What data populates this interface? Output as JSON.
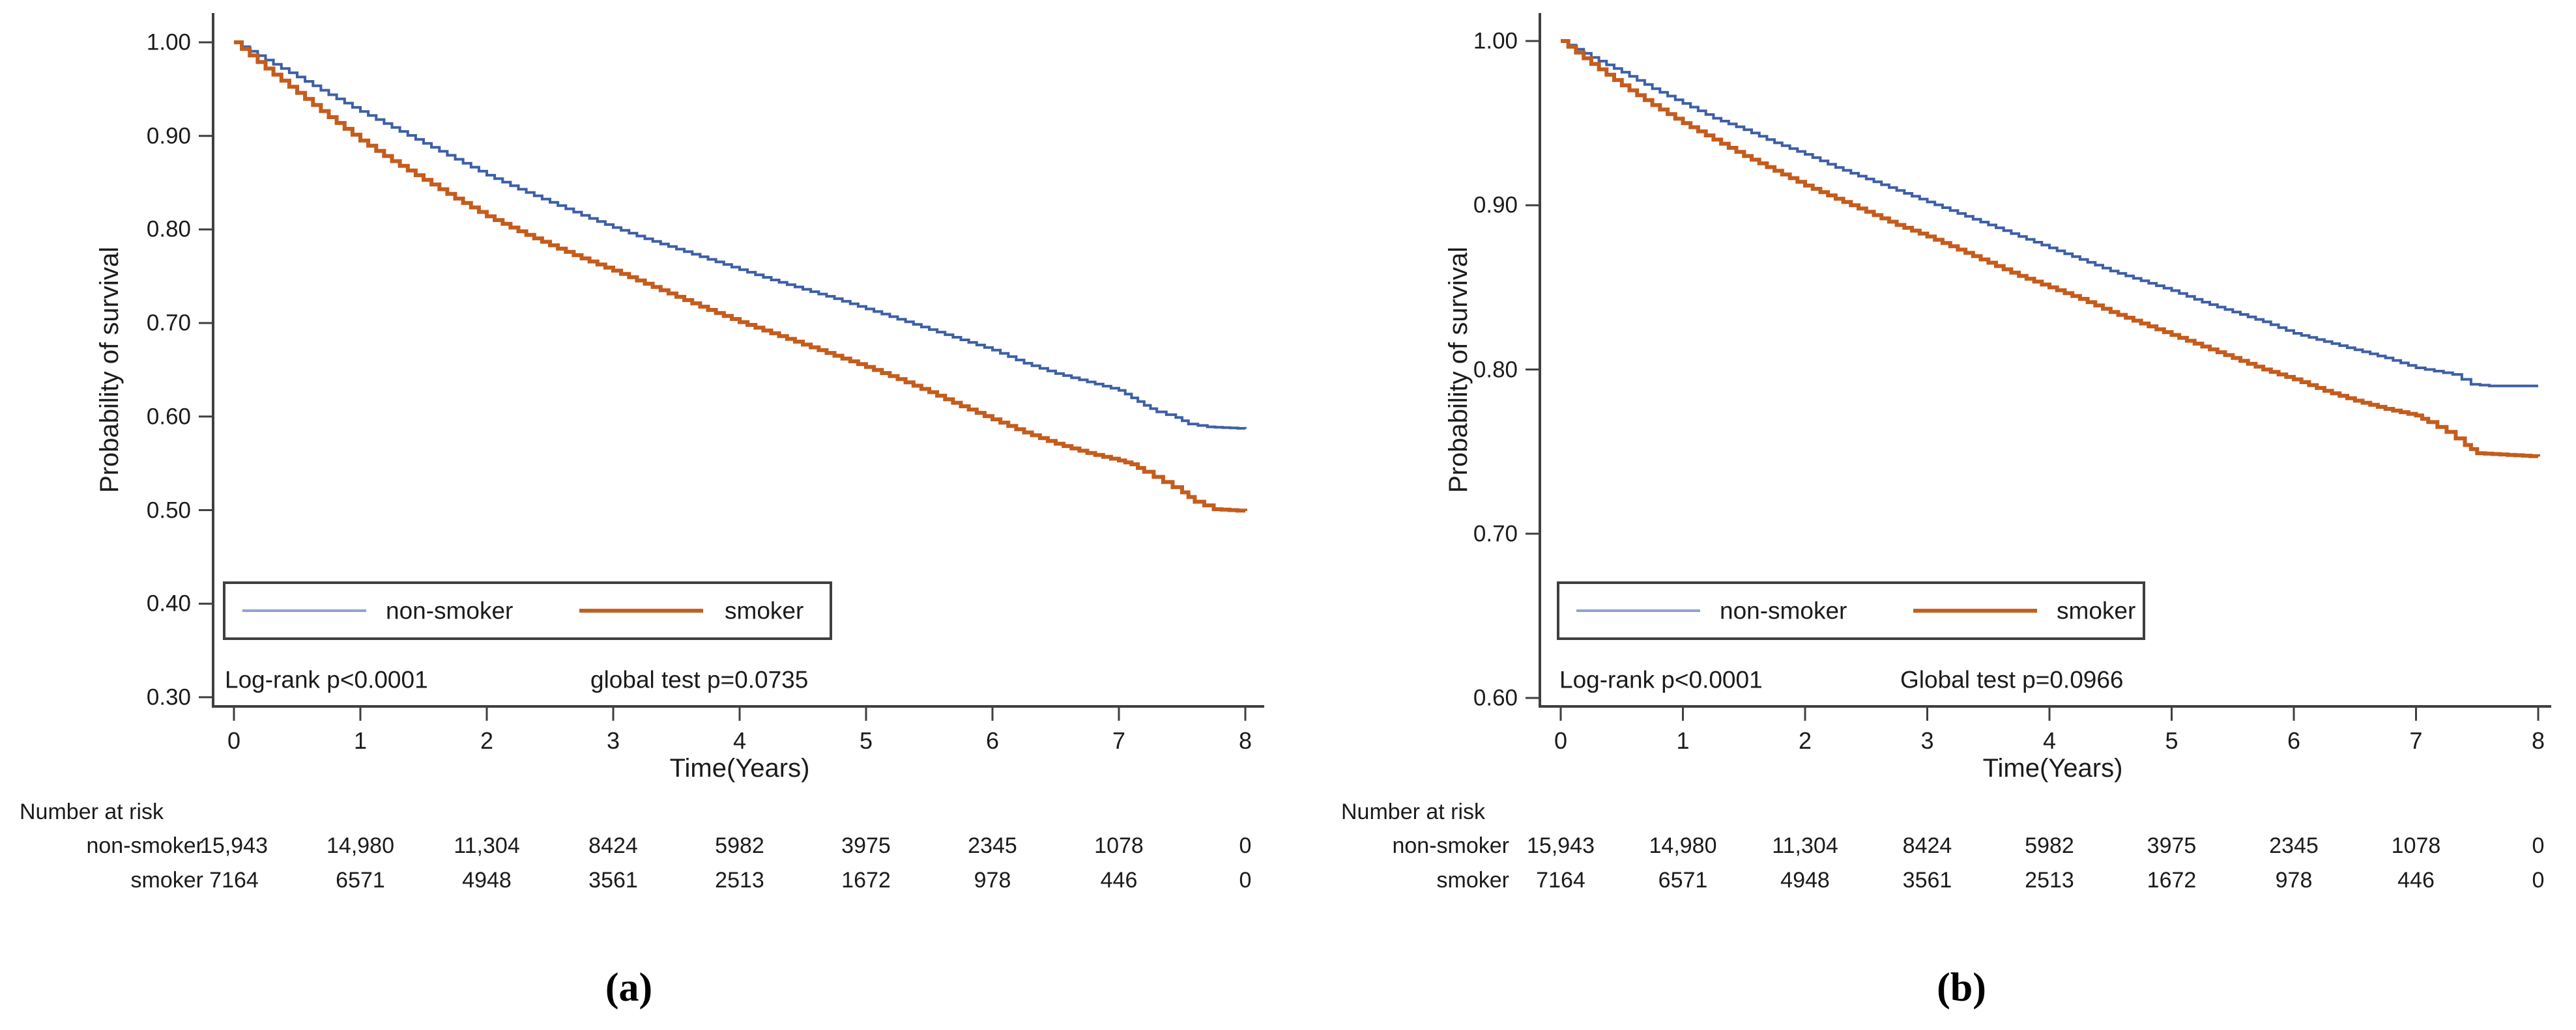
{
  "figure": {
    "background": "#ffffff",
    "axis_color": "#3f3f3f",
    "text_color": "#1b1b1b"
  },
  "chart_data": [
    {
      "type": "line",
      "subtype": "kaplan-meier-step",
      "panel": "a",
      "xlabel": "Time(Years)",
      "ylabel": "Probability of survival",
      "xlim": [
        0,
        8
      ],
      "ylim": [
        0.3,
        1.0
      ],
      "xticks": [
        "0",
        "1",
        "2",
        "3",
        "4",
        "5",
        "6",
        "7",
        "8"
      ],
      "yticks": [
        "1.00",
        "0.90",
        "0.80",
        "0.70",
        "0.60",
        "0.50",
        "0.40",
        "0.30"
      ],
      "grid": "off",
      "legend_position": "inside-bottom-left-box",
      "annotations": [
        "Log-rank p<0.0001",
        "global test p=0.0735"
      ],
      "series": [
        {
          "name": "non-smoker",
          "color": "#3d5fa6",
          "legend_color": "#8ca4ce",
          "points": [
            [
              0,
              1.0
            ],
            [
              0.25,
              0.981
            ],
            [
              0.5,
              0.963
            ],
            [
              0.75,
              0.944
            ],
            [
              1,
              0.926
            ],
            [
              1.25,
              0.909
            ],
            [
              1.5,
              0.892
            ],
            [
              1.75,
              0.875
            ],
            [
              2,
              0.858
            ],
            [
              2.25,
              0.843
            ],
            [
              2.5,
              0.829
            ],
            [
              2.75,
              0.815
            ],
            [
              3,
              0.802
            ],
            [
              3.25,
              0.79
            ],
            [
              3.5,
              0.779
            ],
            [
              3.75,
              0.768
            ],
            [
              4,
              0.757
            ],
            [
              4.25,
              0.746
            ],
            [
              4.5,
              0.736
            ],
            [
              4.75,
              0.726
            ],
            [
              5,
              0.715
            ],
            [
              5.25,
              0.704
            ],
            [
              5.5,
              0.693
            ],
            [
              5.75,
              0.682
            ],
            [
              6,
              0.671
            ],
            [
              6.25,
              0.657
            ],
            [
              6.5,
              0.646
            ],
            [
              6.75,
              0.637
            ],
            [
              7,
              0.628
            ],
            [
              7.1,
              0.62
            ],
            [
              7.2,
              0.612
            ],
            [
              7.3,
              0.605
            ],
            [
              7.45,
              0.599
            ],
            [
              7.55,
              0.592
            ],
            [
              7.7,
              0.589
            ],
            [
              8,
              0.587
            ]
          ]
        },
        {
          "name": "smoker",
          "color": "#c45c1d",
          "legend_color": "#c2601f",
          "points": [
            [
              0,
              1.0
            ],
            [
              0.25,
              0.972
            ],
            [
              0.5,
              0.946
            ],
            [
              0.75,
              0.92
            ],
            [
              1,
              0.895
            ],
            [
              1.25,
              0.873
            ],
            [
              1.5,
              0.853
            ],
            [
              1.75,
              0.833
            ],
            [
              2,
              0.814
            ],
            [
              2.25,
              0.798
            ],
            [
              2.5,
              0.783
            ],
            [
              2.75,
              0.769
            ],
            [
              3,
              0.756
            ],
            [
              3.25,
              0.742
            ],
            [
              3.5,
              0.728
            ],
            [
              3.75,
              0.714
            ],
            [
              4,
              0.701
            ],
            [
              4.25,
              0.689
            ],
            [
              4.5,
              0.677
            ],
            [
              4.75,
              0.665
            ],
            [
              5,
              0.653
            ],
            [
              5.25,
              0.64
            ],
            [
              5.5,
              0.626
            ],
            [
              5.75,
              0.611
            ],
            [
              6,
              0.597
            ],
            [
              6.25,
              0.583
            ],
            [
              6.5,
              0.571
            ],
            [
              6.75,
              0.561
            ],
            [
              7,
              0.553
            ],
            [
              7.1,
              0.549
            ],
            [
              7.2,
              0.541
            ],
            [
              7.35,
              0.53
            ],
            [
              7.5,
              0.519
            ],
            [
              7.6,
              0.509
            ],
            [
              7.75,
              0.501
            ],
            [
              8,
              0.499
            ]
          ]
        }
      ]
    },
    {
      "type": "line",
      "subtype": "kaplan-meier-step",
      "panel": "b",
      "xlabel": "Time(Years)",
      "ylabel": "Probability of survival",
      "xlim": [
        0,
        8
      ],
      "ylim": [
        0.6,
        1.0
      ],
      "xticks": [
        "0",
        "1",
        "2",
        "3",
        "4",
        "5",
        "6",
        "7",
        "8"
      ],
      "yticks": [
        "1.00",
        "0.90",
        "0.80",
        "0.70",
        "0.60"
      ],
      "grid": "off",
      "legend_position": "inside-bottom-left-box",
      "annotations": [
        "Log-rank p<0.0001",
        "Global test p=0.0966"
      ],
      "series": [
        {
          "name": "non-smoker",
          "color": "#3d5fa6",
          "legend_color": "#8ca4ce",
          "points": [
            [
              0,
              1.0
            ],
            [
              0.25,
              0.99
            ],
            [
              0.5,
              0.981
            ],
            [
              0.75,
              0.971
            ],
            [
              1,
              0.962
            ],
            [
              1.25,
              0.953
            ],
            [
              1.5,
              0.946
            ],
            [
              1.75,
              0.938
            ],
            [
              2,
              0.931
            ],
            [
              2.25,
              0.923
            ],
            [
              2.5,
              0.916
            ],
            [
              2.75,
              0.909
            ],
            [
              3,
              0.902
            ],
            [
              3.25,
              0.895
            ],
            [
              3.5,
              0.888
            ],
            [
              3.75,
              0.881
            ],
            [
              4,
              0.874
            ],
            [
              4.25,
              0.867
            ],
            [
              4.5,
              0.86
            ],
            [
              4.75,
              0.854
            ],
            [
              5,
              0.848
            ],
            [
              5.25,
              0.841
            ],
            [
              5.5,
              0.835
            ],
            [
              5.75,
              0.829
            ],
            [
              6,
              0.822
            ],
            [
              6.25,
              0.817
            ],
            [
              6.5,
              0.812
            ],
            [
              6.75,
              0.807
            ],
            [
              7,
              0.801
            ],
            [
              7.15,
              0.799
            ],
            [
              7.3,
              0.797
            ],
            [
              7.45,
              0.791
            ],
            [
              7.6,
              0.79
            ],
            [
              8,
              0.79
            ]
          ]
        },
        {
          "name": "smoker",
          "color": "#c45c1d",
          "legend_color": "#c2601f",
          "points": [
            [
              0,
              1.0
            ],
            [
              0.25,
              0.986
            ],
            [
              0.5,
              0.973
            ],
            [
              0.75,
              0.961
            ],
            [
              1,
              0.95
            ],
            [
              1.25,
              0.94
            ],
            [
              1.5,
              0.93
            ],
            [
              1.75,
              0.921
            ],
            [
              2,
              0.912
            ],
            [
              2.25,
              0.904
            ],
            [
              2.5,
              0.896
            ],
            [
              2.75,
              0.888
            ],
            [
              3,
              0.881
            ],
            [
              3.25,
              0.873
            ],
            [
              3.5,
              0.865
            ],
            [
              3.75,
              0.857
            ],
            [
              4,
              0.85
            ],
            [
              4.25,
              0.843
            ],
            [
              4.5,
              0.835
            ],
            [
              4.75,
              0.828
            ],
            [
              5,
              0.821
            ],
            [
              5.25,
              0.814
            ],
            [
              5.5,
              0.807
            ],
            [
              5.75,
              0.8
            ],
            [
              6,
              0.794
            ],
            [
              6.25,
              0.787
            ],
            [
              6.5,
              0.781
            ],
            [
              6.75,
              0.776
            ],
            [
              7,
              0.772
            ],
            [
              7.1,
              0.768
            ],
            [
              7.25,
              0.762
            ],
            [
              7.4,
              0.754
            ],
            [
              7.5,
              0.749
            ],
            [
              7.75,
              0.748
            ],
            [
              8,
              0.747
            ]
          ]
        }
      ]
    }
  ],
  "number_at_risk": {
    "header": "Number at risk",
    "rows": [
      {
        "label": "non-smoker",
        "values": [
          "15,943",
          "14,980",
          "11,304",
          "8424",
          "5982",
          "3975",
          "2345",
          "1078",
          "0"
        ]
      },
      {
        "label": "smoker",
        "values": [
          "7164",
          "6571",
          "4948",
          "3561",
          "2513",
          "1672",
          "978",
          "446",
          "0"
        ]
      }
    ]
  },
  "captions": [
    {
      "open": "(",
      "letter": "a",
      "close": ")"
    },
    {
      "open": "(",
      "letter": "b",
      "close": ")"
    }
  ]
}
